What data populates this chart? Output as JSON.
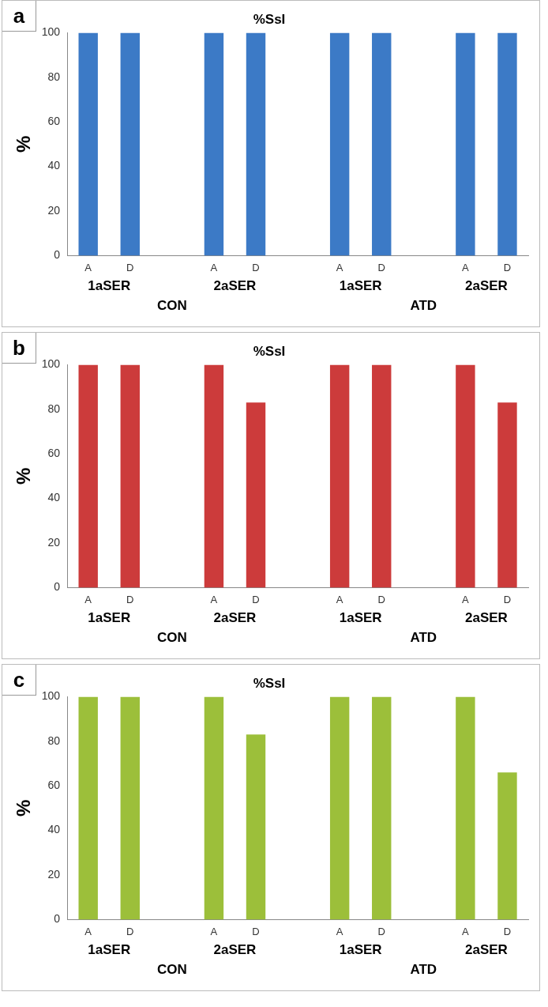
{
  "chart_data": [
    {
      "type": "bar",
      "title": "%SsI",
      "ylabel": "%",
      "categories": [
        "A",
        "D",
        null,
        "A",
        "D",
        null,
        "A",
        "D",
        null,
        "A",
        "D"
      ],
      "values": [
        100,
        100,
        null,
        100,
        100,
        null,
        100,
        100,
        null,
        100,
        100
      ],
      "color": "#3c7ac6",
      "ylim": [
        0,
        100
      ],
      "yticks": [
        0,
        20,
        40,
        60,
        80,
        100
      ],
      "grid": false,
      "annotations": [
        "a",
        "1aSER",
        "2aSER",
        "1aSER",
        "2aSER",
        "CON",
        "ATD"
      ]
    },
    {
      "type": "bar",
      "title": "%SsI",
      "ylabel": "%",
      "categories": [
        "A",
        "D",
        null,
        "A",
        "D",
        null,
        "A",
        "D",
        null,
        "A",
        "D"
      ],
      "values": [
        100,
        100,
        null,
        100,
        83,
        null,
        100,
        100,
        null,
        100,
        83
      ],
      "color": "#cc3b3b",
      "ylim": [
        0,
        100
      ],
      "yticks": [
        0,
        20,
        40,
        60,
        80,
        100
      ],
      "grid": false,
      "annotations": [
        "b",
        "1aSER",
        "2aSER",
        "1aSER",
        "2aSER",
        "CON",
        "ATD"
      ]
    },
    {
      "type": "bar",
      "title": "%SsI",
      "ylabel": "%",
      "categories": [
        "A",
        "D",
        null,
        "A",
        "D",
        null,
        "A",
        "D",
        null,
        "A",
        "D"
      ],
      "values": [
        100,
        100,
        null,
        100,
        83,
        null,
        100,
        100,
        null,
        100,
        66
      ],
      "color": "#9cbf3a",
      "ylim": [
        0,
        100
      ],
      "yticks": [
        0,
        20,
        40,
        60,
        80,
        100
      ],
      "grid": false,
      "annotations": [
        "c",
        "1aSER",
        "2aSER",
        "1aSER",
        "2aSER",
        "CON",
        "ATD"
      ]
    }
  ]
}
